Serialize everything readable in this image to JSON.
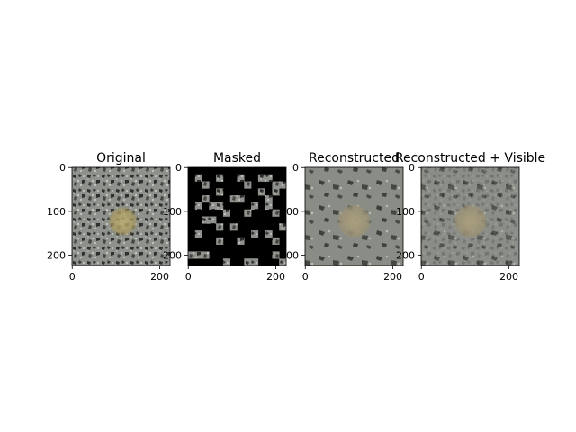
{
  "figure": {
    "background": "#ffffff",
    "panels": [
      {
        "title": "Original",
        "kind": "original",
        "x_ticks": [
          "0",
          "200"
        ],
        "y_ticks": [
          "0",
          "100",
          "200"
        ]
      },
      {
        "title": "Masked",
        "kind": "masked",
        "x_ticks": [
          "0",
          "200"
        ],
        "y_ticks": [
          "0",
          "100",
          "200"
        ]
      },
      {
        "title": "Reconstructed",
        "kind": "reconstructed",
        "x_ticks": [
          "0",
          "200"
        ],
        "y_ticks": [
          "0",
          "100",
          "200"
        ]
      },
      {
        "title": "Reconstructed + Visible",
        "kind": "reconstructed_visible",
        "x_ticks": [
          "0",
          "200"
        ],
        "y_ticks": [
          "0",
          "100",
          "200"
        ]
      }
    ],
    "image_colors": {
      "texture_base": "#8e918c",
      "texture_dark": "#2f302e",
      "texture_light": "#c2c5bf",
      "blob": "#b5a56a",
      "mask": "#000000",
      "recon_base": "#8a8d86",
      "recon_blob": "#a59a78"
    }
  }
}
